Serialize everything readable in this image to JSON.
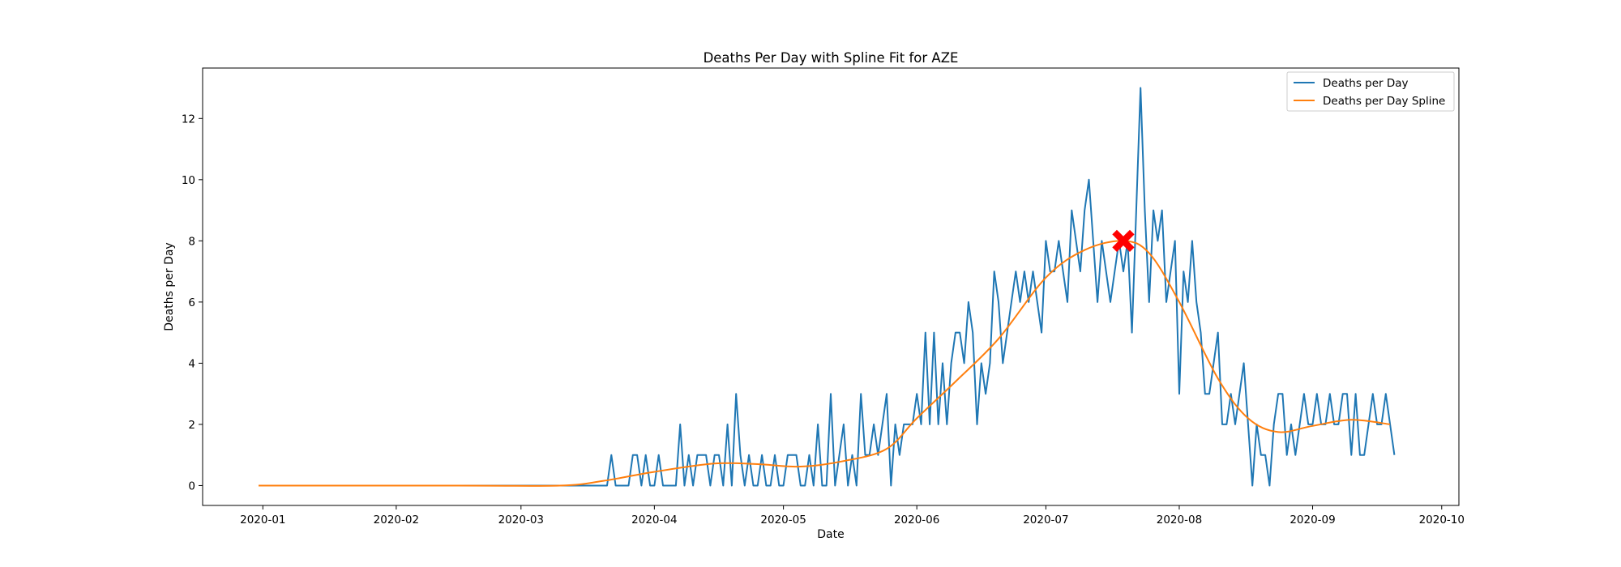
{
  "chart_data": {
    "type": "line",
    "title": "Deaths Per Day with Spline Fit for AZE",
    "xlabel": "Date",
    "ylabel": "Deaths per Day",
    "xlim": [
      "2019-12-18",
      "2020-10-05"
    ],
    "ylim": [
      -0.65,
      13.65
    ],
    "x_ticks": [
      "2020-01",
      "2020-02",
      "2020-03",
      "2020-04",
      "2020-05",
      "2020-06",
      "2020-07",
      "2020-08",
      "2020-09",
      "2020-10"
    ],
    "y_ticks": [
      0,
      2,
      4,
      6,
      8,
      10,
      12
    ],
    "grid": false,
    "legend_position": "upper right",
    "series": [
      {
        "name": "Deaths per Day",
        "color": "#1f77b4",
        "x_start": "2019-12-31",
        "x_step_days": 1,
        "values": [
          0,
          0,
          0,
          0,
          0,
          0,
          0,
          0,
          0,
          0,
          0,
          0,
          0,
          0,
          0,
          0,
          0,
          0,
          0,
          0,
          0,
          0,
          0,
          0,
          0,
          0,
          0,
          0,
          0,
          0,
          0,
          0,
          0,
          0,
          0,
          0,
          0,
          0,
          0,
          0,
          0,
          0,
          0,
          0,
          0,
          0,
          0,
          0,
          0,
          0,
          0,
          0,
          0,
          0,
          0,
          0,
          0,
          0,
          0,
          0,
          0,
          0,
          0,
          0,
          0,
          0,
          0,
          0,
          0,
          0,
          0,
          0,
          0,
          0,
          0,
          0,
          0,
          0,
          0,
          0,
          0,
          0,
          1,
          0,
          0,
          0,
          0,
          1,
          1,
          0,
          1,
          0,
          0,
          1,
          0,
          0,
          0,
          0,
          2,
          0,
          1,
          0,
          1,
          1,
          1,
          0,
          1,
          1,
          0,
          2,
          0,
          3,
          1,
          0,
          1,
          0,
          0,
          1,
          0,
          0,
          1,
          0,
          0,
          1,
          1,
          1,
          0,
          0,
          1,
          0,
          2,
          0,
          0,
          3,
          0,
          1,
          2,
          0,
          1,
          0,
          3,
          1,
          1,
          2,
          1,
          2,
          3,
          0,
          2,
          1,
          2,
          2,
          2,
          3,
          2,
          5,
          2,
          5,
          2,
          4,
          2,
          4,
          5,
          5,
          4,
          6,
          5,
          2,
          4,
          3,
          4,
          7,
          6,
          4,
          5,
          6,
          7,
          6,
          7,
          6,
          7,
          6,
          5,
          8,
          7,
          7,
          8,
          7,
          6,
          9,
          8,
          7,
          9,
          10,
          8,
          6,
          8,
          7,
          6,
          7,
          8,
          7,
          8,
          5,
          9,
          13,
          9,
          6,
          9,
          8,
          9,
          6,
          7,
          8,
          3,
          7,
          6,
          8,
          6,
          5,
          3,
          3,
          4,
          5,
          2,
          2,
          3,
          2,
          3,
          4,
          2,
          0,
          2,
          1,
          1,
          0,
          2,
          3,
          3,
          1,
          2,
          1,
          2,
          3,
          2,
          2,
          3,
          2,
          2,
          3,
          2,
          2,
          3,
          3,
          1,
          3,
          1,
          1,
          2,
          3,
          2,
          2,
          3,
          2,
          1
        ]
      },
      {
        "name": "Deaths per Day Spline",
        "color": "#ff7f0e",
        "points": [
          [
            "2019-12-31",
            0
          ],
          [
            "2020-02-15",
            0
          ],
          [
            "2020-03-10",
            0
          ],
          [
            "2020-03-20",
            0.15
          ],
          [
            "2020-04-01",
            0.45
          ],
          [
            "2020-04-15",
            0.72
          ],
          [
            "2020-04-25",
            0.7
          ],
          [
            "2020-05-05",
            0.62
          ],
          [
            "2020-05-15",
            0.8
          ],
          [
            "2020-05-25",
            1.2
          ],
          [
            "2020-06-01",
            2.2
          ],
          [
            "2020-06-10",
            3.4
          ],
          [
            "2020-06-20",
            4.8
          ],
          [
            "2020-07-01",
            6.8
          ],
          [
            "2020-07-10",
            7.7
          ],
          [
            "2020-07-19",
            8.0
          ],
          [
            "2020-07-25",
            7.6
          ],
          [
            "2020-08-01",
            6.0
          ],
          [
            "2020-08-10",
            3.5
          ],
          [
            "2020-08-17",
            2.2
          ],
          [
            "2020-08-24",
            1.75
          ],
          [
            "2020-09-01",
            1.95
          ],
          [
            "2020-09-10",
            2.15
          ],
          [
            "2020-09-19",
            2.0
          ]
        ]
      }
    ],
    "peak_marker": {
      "x": "2020-07-19",
      "y": 8,
      "color": "#ff0000",
      "shape": "X"
    }
  }
}
